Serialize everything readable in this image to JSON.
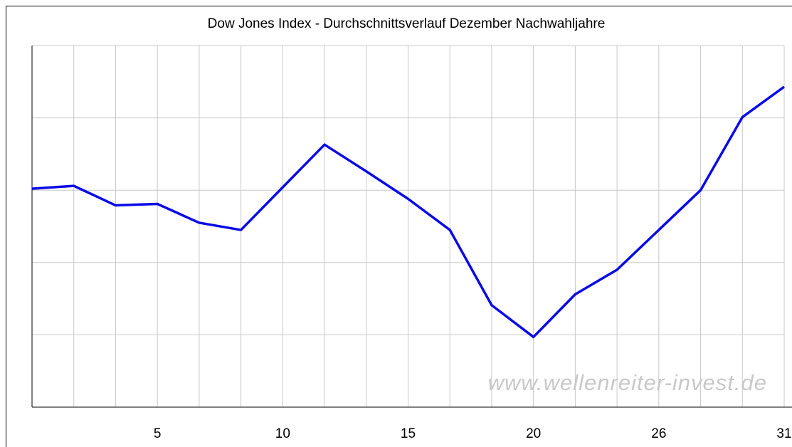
{
  "chart_data": {
    "type": "line",
    "title": "Dow Jones Index - Durchschnittsverlauf Dezember Nachwahljahre",
    "annotation": "www.wellenreiter-invest.de",
    "categories": [
      null,
      null,
      null,
      "5",
      null,
      null,
      "10",
      null,
      null,
      "15",
      null,
      null,
      "20",
      null,
      null,
      "26",
      null,
      null,
      "31"
    ],
    "series": [
      {
        "color": "#0a0ae6",
        "values": [
          3.02,
          3.06,
          2.79,
          2.81,
          2.55,
          2.45,
          3.04,
          3.63,
          3.26,
          2.88,
          2.45,
          1.41,
          0.97,
          1.56,
          1.9,
          2.45,
          3.0,
          4.01,
          4.43
        ]
      }
    ],
    "ylim": [
      0,
      5
    ],
    "yticks": [
      0,
      1,
      2,
      3,
      4,
      5
    ],
    "ytick_labels": false,
    "grid": true
  }
}
